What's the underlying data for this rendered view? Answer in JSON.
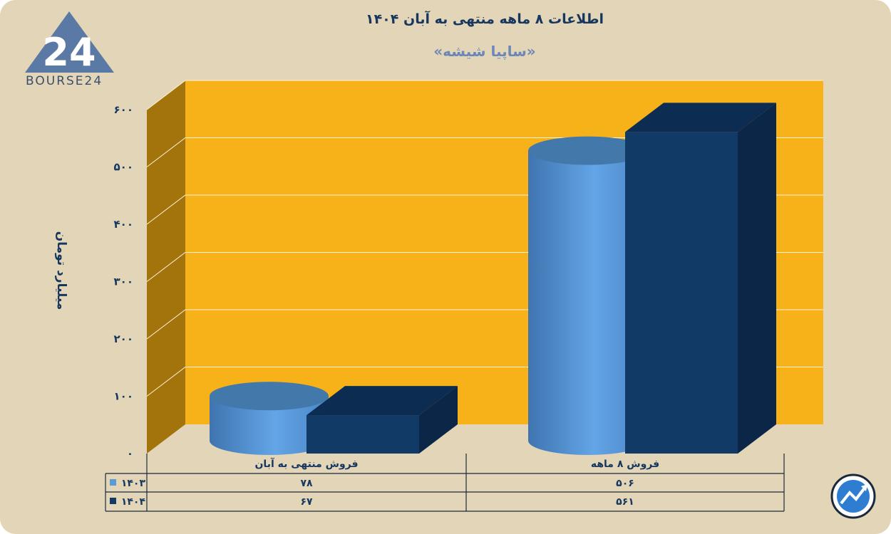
{
  "title": "اطلاعات ۸ ماهه منتهی به آبان ۱۴۰۴",
  "subtitle": "«ساپیا شیشه»",
  "logo_text": "BOURSE24",
  "logo_mark": "24",
  "colors": {
    "background": "#e2d5b8",
    "plot_back": "#f8b219",
    "plot_side": "#a3730c",
    "series_1403": "#5b9bd5",
    "series_1404": "#123a66",
    "text": "#17375e"
  },
  "chart_data": {
    "type": "bar",
    "title": "اطلاعات ۸ ماهه منتهی به آبان ۱۴۰۴",
    "subtitle": "«ساپیا شیشه»",
    "ylabel": "میلیارد تومان",
    "ylim": [
      0,
      600
    ],
    "yticks": [
      0,
      100,
      200,
      300,
      400,
      500,
      600
    ],
    "ytick_labels": [
      "۰",
      "۱۰۰",
      "۲۰۰",
      "۳۰۰",
      "۴۰۰",
      "۵۰۰",
      "۶۰۰"
    ],
    "grid": true,
    "data_table": true,
    "categories": [
      "فروش منتهی به  آبان",
      "فروش ۸  ماهه"
    ],
    "series": [
      {
        "name": "۱۴۰۳",
        "shape": "cylinder",
        "color": "#5b9bd5",
        "values": [
          78,
          506
        ],
        "value_labels": [
          "۷۸",
          "۵۰۶"
        ]
      },
      {
        "name": "۱۴۰۴",
        "shape": "box",
        "color": "#123a66",
        "values": [
          67,
          561
        ],
        "value_labels": [
          "۶۷",
          "۵۶۱"
        ]
      }
    ]
  }
}
